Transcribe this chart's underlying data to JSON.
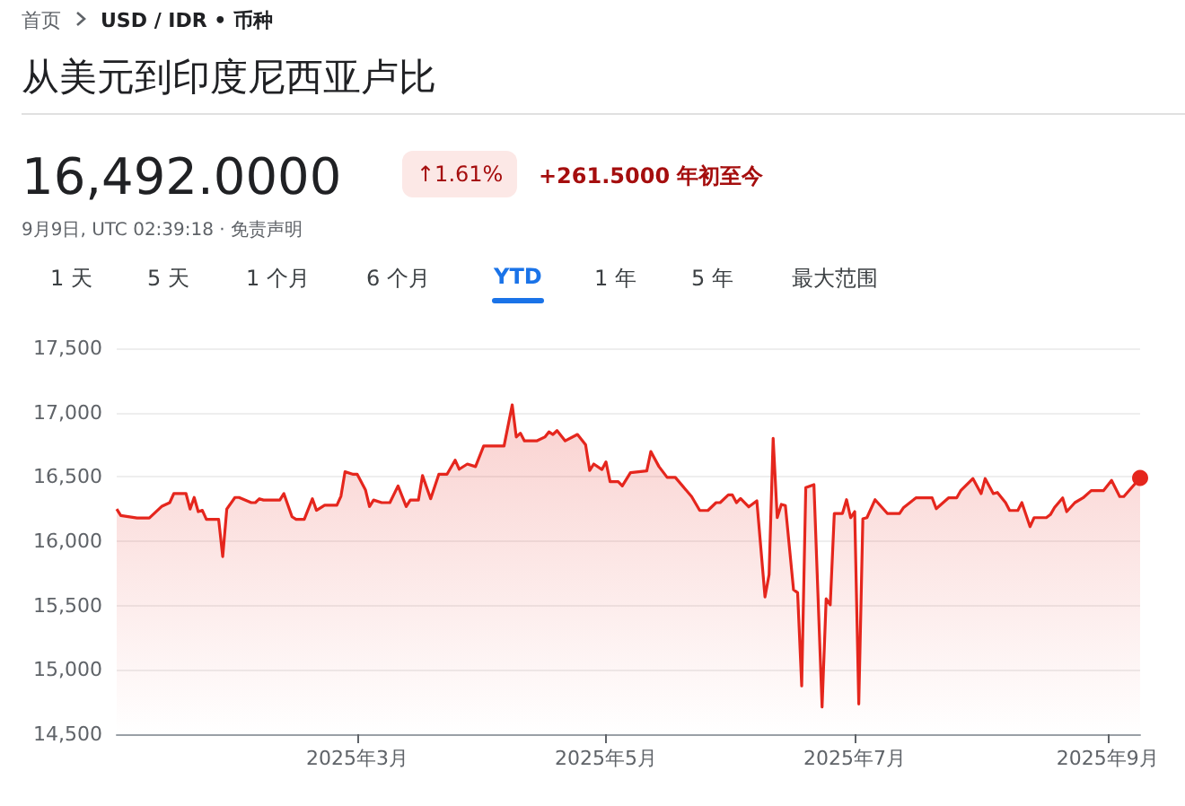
{
  "chart_data": {
    "type": "area",
    "title": "从美元到印度尼西亚卢比",
    "annotations": [
      "首页",
      "USD / IDR • 币种",
      "16,492.0000",
      "↑1.61%",
      "+261.5000 年初至今",
      "9月9日, UTC 02:39:18 · 免责声明",
      "1 天",
      "5 天",
      "1 个月",
      "6 个月",
      "YTD",
      "1 年",
      "5 年",
      "最大范围"
    ],
    "x": [
      "2025-01-01",
      "2025-01-02",
      "2025-01-06",
      "2025-01-09",
      "2025-01-12",
      "2025-01-14",
      "2025-01-15",
      "2025-01-18",
      "2025-01-19",
      "2025-01-20",
      "2025-01-21",
      "2025-01-22",
      "2025-01-23",
      "2025-01-26",
      "2025-01-27",
      "2025-01-28",
      "2025-01-30",
      "2025-01-31",
      "2025-02-03",
      "2025-02-04",
      "2025-02-05",
      "2025-02-06",
      "2025-02-10",
      "2025-02-11",
      "2025-02-13",
      "2025-02-14",
      "2025-02-16",
      "2025-02-18",
      "2025-02-19",
      "2025-02-21",
      "2025-02-24",
      "2025-02-25",
      "2025-02-26",
      "2025-02-28",
      "2025-03-01",
      "2025-03-03",
      "2025-03-04",
      "2025-03-05",
      "2025-03-07",
      "2025-03-09",
      "2025-03-11",
      "2025-03-13",
      "2025-03-14",
      "2025-03-16",
      "2025-03-17",
      "2025-03-19",
      "2025-03-21",
      "2025-03-23",
      "2025-03-25",
      "2025-03-26",
      "2025-03-28",
      "2025-03-30",
      "2025-04-01",
      "2025-04-06",
      "2025-04-08",
      "2025-04-09",
      "2025-04-10",
      "2025-04-11",
      "2025-04-14",
      "2025-04-16",
      "2025-04-17",
      "2025-04-18",
      "2025-04-19",
      "2025-04-21",
      "2025-04-24",
      "2025-04-26",
      "2025-04-27",
      "2025-04-28",
      "2025-04-30",
      "2025-05-01",
      "2025-05-02",
      "2025-05-04",
      "2025-05-05",
      "2025-05-07",
      "2025-05-11",
      "2025-05-12",
      "2025-05-14",
      "2025-05-16",
      "2025-05-18",
      "2025-05-22",
      "2025-05-24",
      "2025-05-26",
      "2025-05-28",
      "2025-05-29",
      "2025-05-31",
      "2025-06-01",
      "2025-06-02",
      "2025-06-03",
      "2025-06-05",
      "2025-06-07",
      "2025-06-09",
      "2025-06-10",
      "2025-06-11",
      "2025-06-12",
      "2025-06-13",
      "2025-06-14",
      "2025-06-16",
      "2025-06-17",
      "2025-06-18",
      "2025-06-19",
      "2025-06-21",
      "2025-06-23",
      "2025-06-24",
      "2025-06-25",
      "2025-06-26",
      "2025-06-28",
      "2025-06-29",
      "2025-06-30",
      "2025-07-01",
      "2025-07-02",
      "2025-07-03",
      "2025-07-04",
      "2025-07-06",
      "2025-07-09",
      "2025-07-12",
      "2025-07-13",
      "2025-07-16",
      "2025-07-20",
      "2025-07-21",
      "2025-07-24",
      "2025-07-26",
      "2025-07-27",
      "2025-07-30",
      "2025-08-01",
      "2025-08-02",
      "2025-08-04",
      "2025-08-05",
      "2025-08-07",
      "2025-08-08",
      "2025-08-10",
      "2025-08-11",
      "2025-08-13",
      "2025-08-14",
      "2025-08-17",
      "2025-08-18",
      "2025-08-19",
      "2025-08-21",
      "2025-08-22",
      "2025-08-24",
      "2025-08-26",
      "2025-08-28",
      "2025-08-31",
      "2025-09-02",
      "2025-09-04",
      "2025-09-05",
      "2025-09-09"
    ],
    "series": [
      {
        "color": "#e5261d",
        "values": [
          16250,
          16200,
          16180,
          16180,
          16270,
          16300,
          16370,
          16370,
          16250,
          16340,
          16230,
          16240,
          16170,
          16170,
          15880,
          16250,
          16340,
          16340,
          16300,
          16300,
          16330,
          16320,
          16320,
          16370,
          16190,
          16170,
          16170,
          16330,
          16240,
          16280,
          16280,
          16350,
          16540,
          16520,
          16520,
          16400,
          16270,
          16320,
          16300,
          16300,
          16430,
          16270,
          16320,
          16320,
          16510,
          16330,
          16520,
          16520,
          16630,
          16560,
          16600,
          16580,
          16740,
          16740,
          17060,
          16810,
          16840,
          16780,
          16780,
          16810,
          16850,
          16830,
          16860,
          16780,
          16830,
          16750,
          16550,
          16600,
          16557,
          16617,
          16463,
          16463,
          16430,
          16533,
          16547,
          16697,
          16580,
          16496,
          16496,
          16347,
          16239,
          16239,
          16300,
          16300,
          16360,
          16360,
          16300,
          16332,
          16267,
          16314,
          15567,
          15740,
          16800,
          16183,
          16286,
          16277,
          15623,
          15600,
          14876,
          16417,
          16440,
          14712,
          15553,
          15506,
          16216,
          16216,
          16323,
          16183,
          16230,
          14735,
          16174,
          16183,
          16323,
          16216,
          16216,
          16262,
          16337,
          16337,
          16253,
          16337,
          16337,
          16393,
          16487,
          16370,
          16487,
          16370,
          16379,
          16300,
          16239,
          16239,
          16300,
          16113,
          16183,
          16183,
          16207,
          16262,
          16337,
          16230,
          16300,
          16337,
          16393,
          16393,
          16473,
          16347,
          16347,
          16492
        ]
      }
    ],
    "xlim": [
      "2025-01-01",
      "2025-09-09"
    ],
    "xticks": [
      {
        "value": "2025-03-01",
        "label": "2025年3月"
      },
      {
        "value": "2025-05-01",
        "label": "2025年5月"
      },
      {
        "value": "2025-07-01",
        "label": "2025年7月"
      },
      {
        "value": "2025-09-01",
        "label": "2025年9月"
      }
    ],
    "ylim": [
      14500,
      17500
    ],
    "yticks": [
      {
        "value": 14500,
        "label": "14,500"
      },
      {
        "value": 15000,
        "label": "15,000"
      },
      {
        "value": 15500,
        "label": "15,500"
      },
      {
        "value": 16000,
        "label": "16,000"
      },
      {
        "value": 16500,
        "label": "16,500"
      },
      {
        "value": 17000,
        "label": "17,000"
      },
      {
        "value": 17500,
        "label": "17,500"
      }
    ],
    "grid": "y"
  }
}
